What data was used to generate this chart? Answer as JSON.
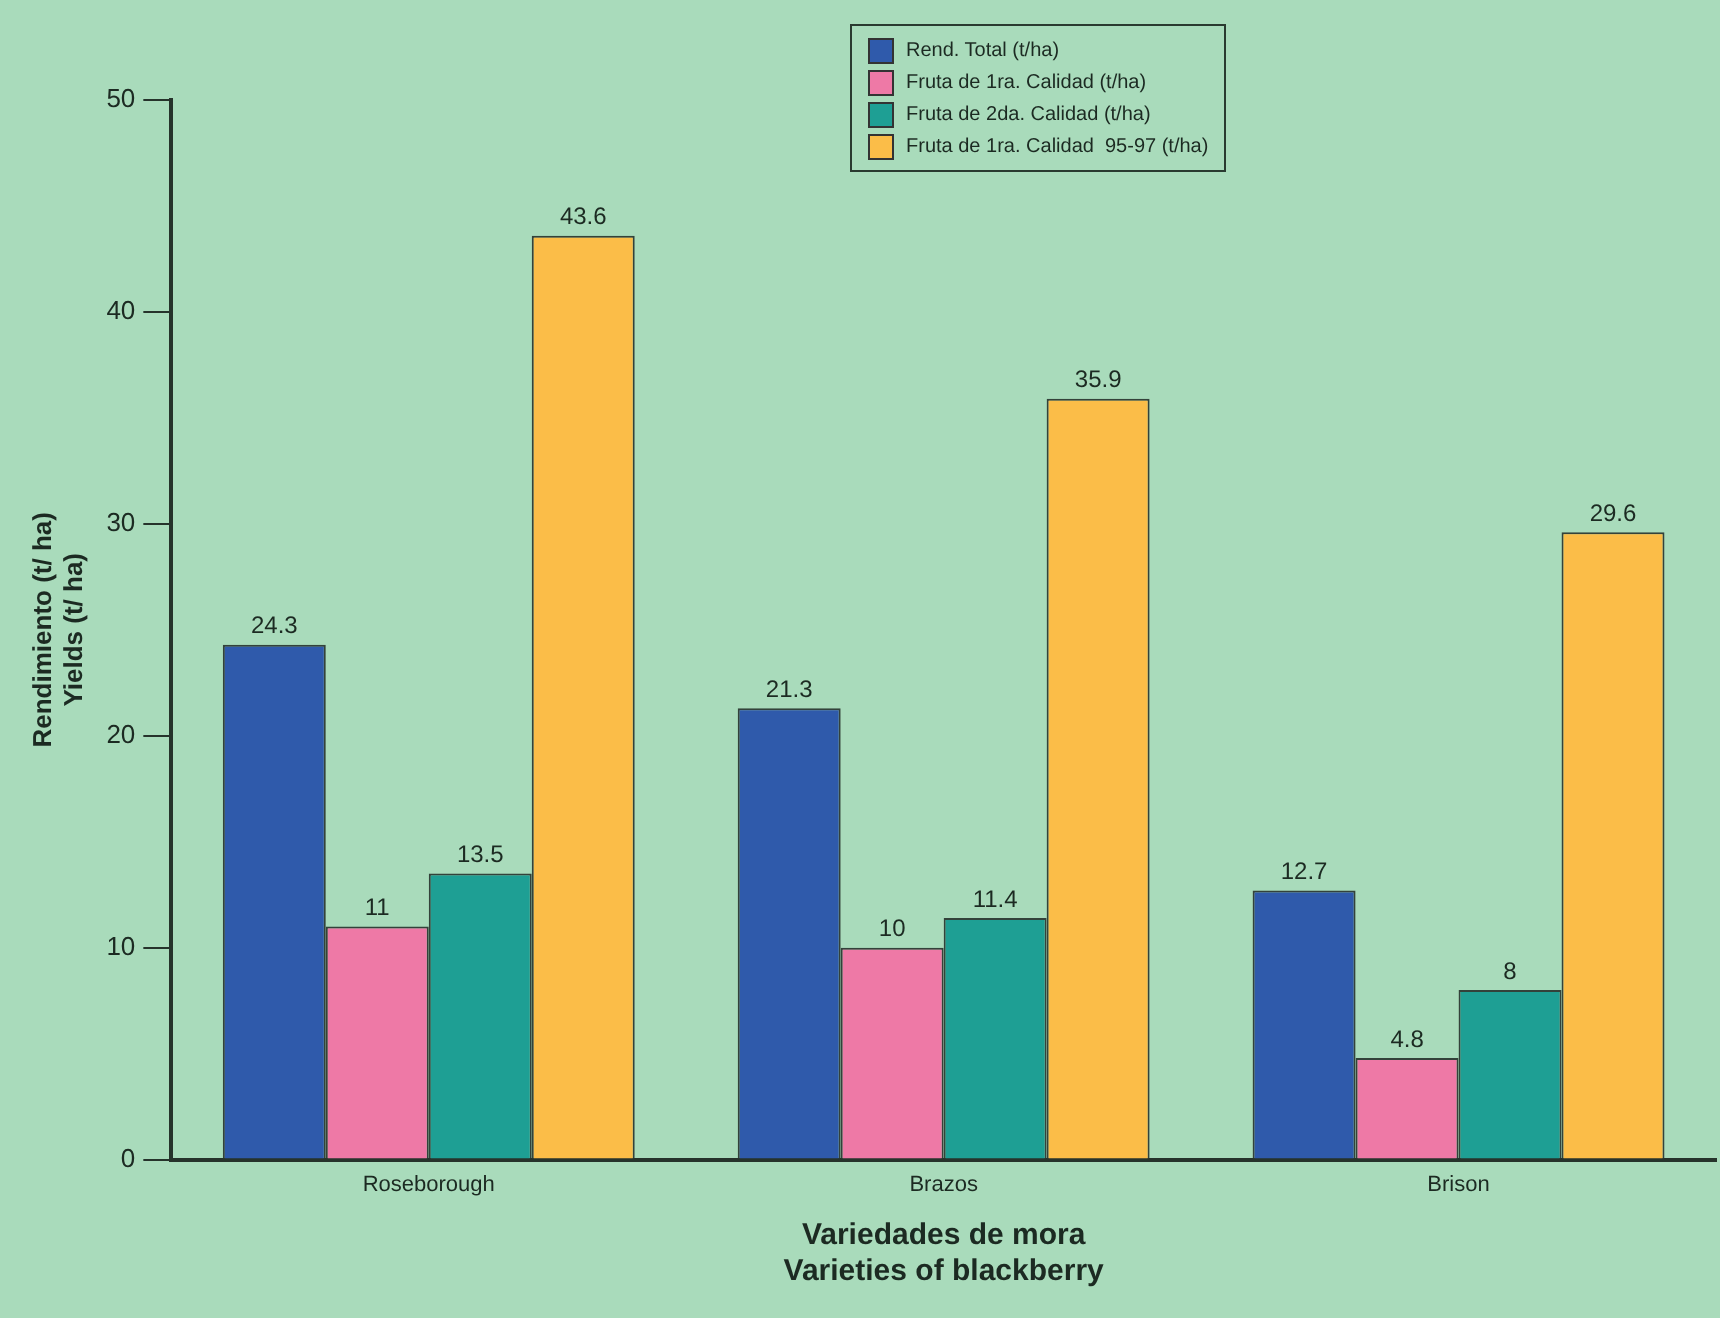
{
  "chart_data": {
    "type": "bar",
    "xlabel": "Variedades de mora\nVarieties of blackberry",
    "ylabel": "Rendimiento (t/ ha)\nYields (t/ ha)",
    "categories": [
      "Roseborough",
      "Brazos",
      "Brison"
    ],
    "series": [
      {
        "name": "Rend. Total (t/ha)",
        "color": "#2f5aab",
        "values": [
          24.3,
          21.3,
          12.7
        ]
      },
      {
        "name": "Fruta de 1ra. Calidad (t/ha)",
        "color": "#ee79a6",
        "values": [
          11,
          10,
          4.8
        ]
      },
      {
        "name": "Fruta de 2da. Calidad (t/ha)",
        "color": "#1e9f94",
        "values": [
          13.5,
          11.4,
          8
        ]
      },
      {
        "name": "Fruta de 1ra. Calidad  95-97 (t/ha)",
        "color": "#fbbd48",
        "values": [
          43.6,
          35.9,
          29.6
        ]
      }
    ],
    "ylim": [
      0,
      50
    ],
    "yticks": [
      0,
      10,
      20,
      30,
      40,
      50
    ],
    "grid": false,
    "legend": "top",
    "data_labels": true
  }
}
